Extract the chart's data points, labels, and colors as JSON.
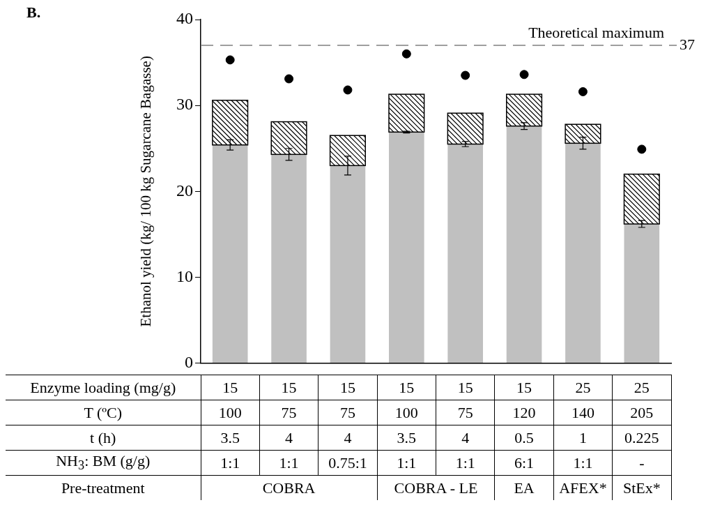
{
  "chart_data": {
    "type": "bar",
    "title": "B.",
    "ylabel": "Ethanol yield (kg/ 100 kg Sugarcane Bagasse)",
    "categories": [
      null,
      null,
      null,
      null,
      null,
      null,
      null,
      null
    ],
    "stacked": true,
    "series": [
      {
        "color": "#c0c0c0",
        "values": [
          25.4,
          24.3,
          23.0,
          26.9,
          25.5,
          27.6,
          25.6,
          16.2
        ],
        "errors": [
          0.6,
          0.7,
          1.1,
          0.1,
          0.3,
          0.4,
          0.7,
          0.4
        ]
      },
      {
        "color": "#ffffff",
        "values": [
          5.2,
          3.8,
          3.5,
          4.4,
          3.6,
          3.7,
          2.2,
          5.8
        ]
      },
      {
        "type": "scatter",
        "color": "#000000",
        "values": [
          35.3,
          33.1,
          31.8,
          36.0,
          33.5,
          33.6,
          31.6,
          24.9
        ]
      }
    ],
    "ylim": [
      0,
      40
    ],
    "yticks": [
      0,
      10,
      20,
      30,
      40
    ],
    "grid": false,
    "legend": false,
    "ref_lines": [
      {
        "axis": "y",
        "value": 37,
        "label": "Theoretical maximum",
        "color": "#808080",
        "line_style": "dashed"
      }
    ],
    "annotations": [
      "Enzyme loading (mg/g)",
      "15",
      "15",
      "15",
      "15",
      "15",
      "15",
      "25",
      "25",
      "T (ºC)",
      "100",
      "75",
      "75",
      "100",
      "75",
      "120",
      "140",
      "205",
      "t (h)",
      "3.5",
      "4",
      "4",
      "3.5",
      "4",
      "0.5",
      "1",
      "0.225",
      "NH$_{3}$: BM (g/g)",
      "1:1",
      "1:1",
      "0.75:1",
      "1:1",
      "1:1",
      "6:1",
      "1:1",
      "-",
      "Pre-treatment",
      "COBRA",
      "COBRA - LE",
      "EA",
      "AFEX*",
      "StEx*",
      "37"
    ]
  }
}
